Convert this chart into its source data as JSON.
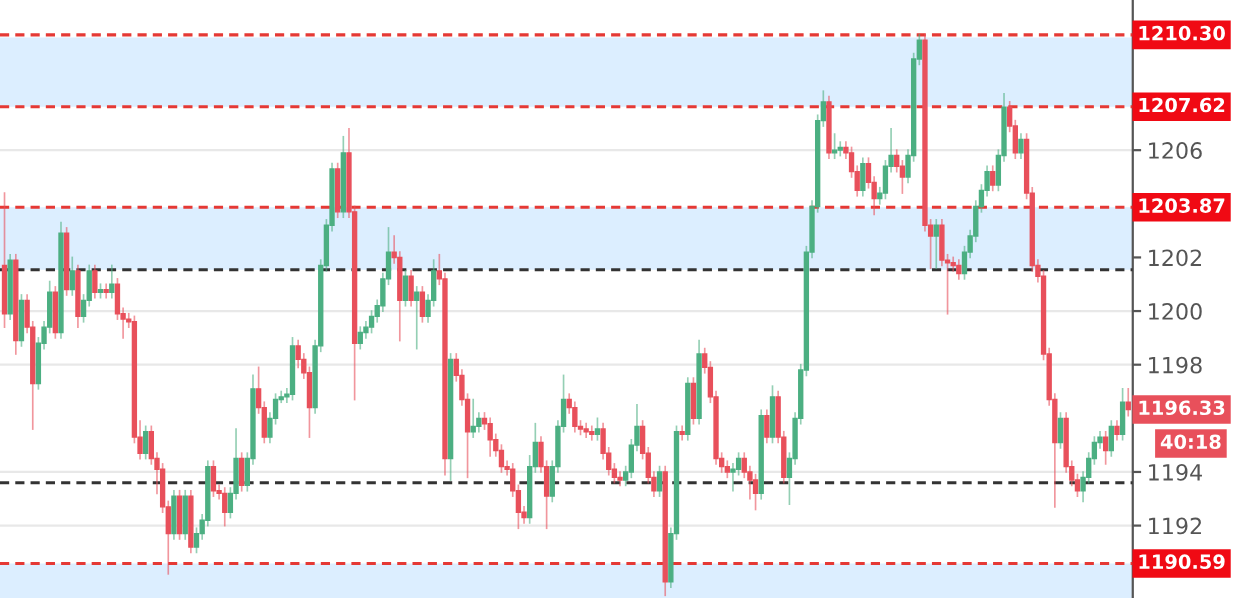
{
  "chart_data": {
    "type": "candlestick",
    "categories": [
      null,
      null,
      null,
      null,
      null,
      null,
      null,
      null,
      null,
      null,
      null,
      null,
      null,
      null,
      null,
      null,
      null,
      null,
      null,
      null,
      null,
      null,
      null,
      null,
      null,
      null,
      null,
      null,
      null,
      null,
      null,
      null,
      null,
      null,
      null,
      null,
      null,
      null,
      null,
      null,
      null,
      null,
      null,
      null,
      null,
      null,
      null,
      null,
      null,
      null,
      null,
      null,
      null,
      null,
      null,
      null,
      null,
      null,
      null,
      null,
      null,
      null,
      null,
      null,
      null,
      null,
      null,
      null,
      null,
      null,
      null,
      null,
      null,
      null,
      null,
      null,
      null,
      null,
      null,
      null,
      null,
      null,
      null,
      null,
      null,
      null,
      null,
      null,
      null,
      null,
      null,
      null,
      null,
      null,
      null,
      null,
      null,
      null,
      null,
      null,
      null,
      null,
      null,
      null,
      null,
      null,
      null,
      null,
      null,
      null,
      null,
      null,
      null,
      null,
      null,
      null,
      null,
      null,
      null,
      null,
      null,
      null,
      null,
      null,
      null,
      null,
      null,
      null,
      null,
      null,
      null,
      null,
      null,
      null,
      null,
      null,
      null,
      null,
      null,
      null,
      null,
      null,
      null,
      null,
      null,
      null,
      null,
      null,
      null,
      null,
      null,
      null,
      null,
      null,
      null,
      null,
      null,
      null,
      null,
      null,
      null,
      null,
      null,
      null,
      null,
      null,
      null,
      null,
      null,
      null,
      null,
      null,
      null,
      null,
      null,
      null,
      null,
      null,
      null,
      null,
      null,
      null,
      null,
      null,
      null,
      null,
      null,
      null,
      null,
      null,
      null,
      null,
      null,
      null,
      null,
      null,
      null,
      null,
      null,
      null
    ],
    "ohlc": [
      [
        1201.7,
        1204.4,
        1199.4,
        1199.9
      ],
      [
        1199.9,
        1202.1,
        1199.7,
        1201.9
      ],
      [
        1201.9,
        1202.1,
        1198.4,
        1198.9
      ],
      [
        1198.9,
        1200.6,
        1198.7,
        1200.4
      ],
      [
        1200.4,
        1200.6,
        1199.2,
        1199.4
      ],
      [
        1199.4,
        1199.6,
        1195.6,
        1197.3
      ],
      [
        1197.3,
        1199.0,
        1197.1,
        1198.8
      ],
      [
        1198.8,
        1199.6,
        1198.6,
        1199.4
      ],
      [
        1199.4,
        1201.1,
        1199.2,
        1200.7
      ],
      [
        1200.7,
        1200.9,
        1199.0,
        1199.2
      ],
      [
        1199.2,
        1203.3,
        1199.0,
        1202.9
      ],
      [
        1202.9,
        1203.1,
        1200.6,
        1200.8
      ],
      [
        1200.8,
        1202.0,
        1200.6,
        1201.5
      ],
      [
        1201.5,
        1201.7,
        1199.4,
        1199.8
      ],
      [
        1199.8,
        1200.6,
        1199.6,
        1200.4
      ],
      [
        1200.4,
        1201.7,
        1200.2,
        1201.5
      ],
      [
        1201.5,
        1201.7,
        1200.5,
        1200.7
      ],
      [
        1200.7,
        1201.0,
        1200.5,
        1200.8
      ],
      [
        1200.8,
        1201.0,
        1200.5,
        1200.7
      ],
      [
        1200.7,
        1201.7,
        1200.5,
        1201.0
      ],
      [
        1201.0,
        1201.2,
        1199.7,
        1199.9
      ],
      [
        1199.9,
        1200.1,
        1199.0,
        1199.7
      ],
      [
        1199.7,
        1199.9,
        1199.4,
        1199.6
      ],
      [
        1199.6,
        1199.8,
        1195.1,
        1195.3
      ],
      [
        1195.3,
        1195.9,
        1194.5,
        1194.7
      ],
      [
        1194.7,
        1195.7,
        1194.5,
        1195.5
      ],
      [
        1195.5,
        1195.7,
        1194.3,
        1194.5
      ],
      [
        1194.5,
        1194.7,
        1193.2,
        1194.1
      ],
      [
        1194.1,
        1194.3,
        1192.5,
        1192.7
      ],
      [
        1192.7,
        1192.9,
        1190.2,
        1191.7
      ],
      [
        1191.7,
        1193.3,
        1191.5,
        1193.1
      ],
      [
        1193.1,
        1193.3,
        1191.5,
        1191.7
      ],
      [
        1191.7,
        1193.3,
        1191.5,
        1193.1
      ],
      [
        1193.1,
        1193.3,
        1191.0,
        1191.2
      ],
      [
        1191.2,
        1191.9,
        1191.0,
        1191.7
      ],
      [
        1191.7,
        1192.4,
        1191.5,
        1192.2
      ],
      [
        1192.2,
        1194.4,
        1192.0,
        1194.2
      ],
      [
        1194.2,
        1194.4,
        1193.1,
        1193.3
      ],
      [
        1193.3,
        1193.5,
        1193.0,
        1193.2
      ],
      [
        1193.2,
        1193.4,
        1192.0,
        1192.5
      ],
      [
        1192.5,
        1193.4,
        1192.3,
        1193.2
      ],
      [
        1193.2,
        1195.6,
        1193.0,
        1194.5
      ],
      [
        1194.5,
        1194.7,
        1193.3,
        1193.5
      ],
      [
        1193.5,
        1194.7,
        1193.3,
        1194.5
      ],
      [
        1194.5,
        1197.6,
        1194.3,
        1197.1
      ],
      [
        1197.1,
        1197.9,
        1196.2,
        1196.4
      ],
      [
        1196.4,
        1196.6,
        1195.1,
        1195.3
      ],
      [
        1195.3,
        1196.2,
        1195.1,
        1196.0
      ],
      [
        1196.0,
        1196.9,
        1195.8,
        1196.7
      ],
      [
        1196.7,
        1197.0,
        1196.6,
        1196.8
      ],
      [
        1196.8,
        1197.1,
        1196.6,
        1196.9
      ],
      [
        1196.9,
        1199.0,
        1196.7,
        1198.7
      ],
      [
        1198.7,
        1198.9,
        1197.9,
        1198.2
      ],
      [
        1198.2,
        1198.4,
        1197.5,
        1197.7
      ],
      [
        1197.7,
        1197.9,
        1195.3,
        1196.4
      ],
      [
        1196.4,
        1198.9,
        1196.2,
        1198.7
      ],
      [
        1198.7,
        1201.9,
        1198.5,
        1201.7
      ],
      [
        1201.7,
        1203.4,
        1201.5,
        1203.2
      ],
      [
        1203.2,
        1205.5,
        1203.0,
        1205.3
      ],
      [
        1205.3,
        1205.5,
        1203.5,
        1203.7
      ],
      [
        1203.7,
        1206.5,
        1203.5,
        1205.9
      ],
      [
        1205.9,
        1206.8,
        1203.5,
        1203.7
      ],
      [
        1203.7,
        1203.9,
        1196.7,
        1198.8
      ],
      [
        1198.8,
        1199.4,
        1198.6,
        1199.2
      ],
      [
        1199.2,
        1199.6,
        1199.0,
        1199.4
      ],
      [
        1199.4,
        1200.0,
        1199.2,
        1199.8
      ],
      [
        1199.8,
        1200.4,
        1199.6,
        1200.2
      ],
      [
        1200.2,
        1201.4,
        1200.0,
        1201.2
      ],
      [
        1201.2,
        1203.1,
        1201.0,
        1202.2
      ],
      [
        1202.2,
        1202.8,
        1201.8,
        1202.0
      ],
      [
        1202.0,
        1202.2,
        1198.9,
        1200.4
      ],
      [
        1200.4,
        1201.5,
        1200.2,
        1201.3
      ],
      [
        1201.3,
        1201.5,
        1200.2,
        1200.4
      ],
      [
        1200.4,
        1200.9,
        1198.6,
        1200.7
      ],
      [
        1200.7,
        1200.9,
        1199.6,
        1199.8
      ],
      [
        1199.8,
        1200.6,
        1199.6,
        1200.4
      ],
      [
        1200.4,
        1201.9,
        1200.2,
        1201.5
      ],
      [
        1201.5,
        1202.1,
        1201.0,
        1201.2
      ],
      [
        1201.2,
        1201.4,
        1193.9,
        1194.5
      ],
      [
        1194.5,
        1198.4,
        1193.7,
        1198.2
      ],
      [
        1198.2,
        1198.4,
        1197.4,
        1197.6
      ],
      [
        1197.6,
        1197.8,
        1196.5,
        1196.7
      ],
      [
        1196.7,
        1196.9,
        1193.8,
        1195.5
      ],
      [
        1195.5,
        1196.7,
        1195.3,
        1195.7
      ],
      [
        1195.7,
        1196.2,
        1195.5,
        1196.0
      ],
      [
        1196.0,
        1196.2,
        1195.6,
        1195.8
      ],
      [
        1195.8,
        1196.0,
        1194.6,
        1195.2
      ],
      [
        1195.2,
        1195.4,
        1194.6,
        1194.8
      ],
      [
        1194.8,
        1195.0,
        1194.0,
        1194.2
      ],
      [
        1194.2,
        1194.4,
        1193.9,
        1194.1
      ],
      [
        1194.1,
        1194.3,
        1193.1,
        1193.3
      ],
      [
        1193.3,
        1193.5,
        1191.9,
        1192.5
      ],
      [
        1192.5,
        1192.7,
        1192.1,
        1192.3
      ],
      [
        1192.3,
        1194.6,
        1192.1,
        1194.2
      ],
      [
        1194.2,
        1195.8,
        1194.0,
        1195.1
      ],
      [
        1195.1,
        1195.3,
        1194.0,
        1194.2
      ],
      [
        1194.2,
        1194.4,
        1191.9,
        1193.1
      ],
      [
        1193.1,
        1194.4,
        1192.9,
        1194.2
      ],
      [
        1194.2,
        1195.9,
        1194.0,
        1195.7
      ],
      [
        1195.7,
        1197.6,
        1195.5,
        1196.7
      ],
      [
        1196.7,
        1196.9,
        1196.2,
        1196.4
      ],
      [
        1196.4,
        1196.6,
        1195.5,
        1195.7
      ],
      [
        1195.7,
        1195.9,
        1195.4,
        1195.6
      ],
      [
        1195.6,
        1195.8,
        1195.3,
        1195.5
      ],
      [
        1195.5,
        1195.7,
        1195.2,
        1195.4
      ],
      [
        1195.4,
        1196.0,
        1195.2,
        1195.6
      ],
      [
        1195.6,
        1195.8,
        1194.5,
        1194.7
      ],
      [
        1194.7,
        1194.9,
        1193.9,
        1194.1
      ],
      [
        1194.1,
        1194.3,
        1193.6,
        1193.8
      ],
      [
        1193.8,
        1194.0,
        1193.5,
        1193.7
      ],
      [
        1193.7,
        1194.2,
        1193.5,
        1194.0
      ],
      [
        1194.0,
        1195.2,
        1193.8,
        1195.0
      ],
      [
        1195.0,
        1196.5,
        1194.8,
        1195.7
      ],
      [
        1195.7,
        1195.9,
        1194.5,
        1194.7
      ],
      [
        1194.7,
        1194.9,
        1193.6,
        1193.8
      ],
      [
        1193.8,
        1194.0,
        1193.1,
        1193.3
      ],
      [
        1193.3,
        1194.2,
        1193.1,
        1194.0
      ],
      [
        1194.0,
        1194.2,
        1189.4,
        1189.9
      ],
      [
        1189.9,
        1191.9,
        1189.7,
        1191.7
      ],
      [
        1191.7,
        1195.7,
        1191.5,
        1195.5
      ],
      [
        1195.5,
        1195.7,
        1195.2,
        1195.4
      ],
      [
        1195.4,
        1197.5,
        1195.2,
        1197.3
      ],
      [
        1197.3,
        1197.5,
        1195.8,
        1196.0
      ],
      [
        1196.0,
        1198.9,
        1195.8,
        1198.4
      ],
      [
        1198.4,
        1198.6,
        1197.7,
        1197.9
      ],
      [
        1197.9,
        1198.1,
        1196.6,
        1196.8
      ],
      [
        1196.8,
        1197.0,
        1194.3,
        1194.5
      ],
      [
        1194.5,
        1194.7,
        1194.0,
        1194.2
      ],
      [
        1194.2,
        1194.4,
        1193.8,
        1194.0
      ],
      [
        1194.0,
        1194.3,
        1193.3,
        1194.1
      ],
      [
        1194.1,
        1194.7,
        1193.9,
        1194.5
      ],
      [
        1194.5,
        1194.7,
        1193.8,
        1194.0
      ],
      [
        1194.0,
        1194.2,
        1193.0,
        1193.7
      ],
      [
        1193.7,
        1193.9,
        1192.6,
        1193.2
      ],
      [
        1193.2,
        1196.3,
        1193.0,
        1196.1
      ],
      [
        1196.1,
        1196.3,
        1195.1,
        1195.3
      ],
      [
        1195.3,
        1197.2,
        1195.1,
        1196.8
      ],
      [
        1196.8,
        1197.0,
        1195.1,
        1195.3
      ],
      [
        1195.3,
        1195.5,
        1193.6,
        1193.8
      ],
      [
        1193.8,
        1194.7,
        1192.8,
        1194.5
      ],
      [
        1194.5,
        1196.2,
        1194.3,
        1196.0
      ],
      [
        1196.0,
        1198.0,
        1195.8,
        1197.8
      ],
      [
        1197.8,
        1202.4,
        1197.6,
        1202.2
      ],
      [
        1202.2,
        1204.1,
        1202.0,
        1203.9
      ],
      [
        1203.9,
        1207.3,
        1203.7,
        1207.1
      ],
      [
        1207.1,
        1208.2,
        1206.9,
        1207.8
      ],
      [
        1207.8,
        1208.0,
        1205.7,
        1205.9
      ],
      [
        1205.9,
        1206.6,
        1205.7,
        1206.0
      ],
      [
        1206.0,
        1206.3,
        1205.8,
        1206.1
      ],
      [
        1206.1,
        1206.3,
        1205.7,
        1205.9
      ],
      [
        1205.9,
        1206.1,
        1205.0,
        1205.2
      ],
      [
        1205.2,
        1205.4,
        1204.3,
        1204.5
      ],
      [
        1204.5,
        1205.7,
        1204.3,
        1205.5
      ],
      [
        1205.5,
        1205.7,
        1204.6,
        1204.8
      ],
      [
        1204.8,
        1205.0,
        1203.6,
        1204.2
      ],
      [
        1204.2,
        1204.6,
        1204.0,
        1204.4
      ],
      [
        1204.4,
        1205.6,
        1204.2,
        1205.4
      ],
      [
        1205.4,
        1206.8,
        1205.2,
        1205.8
      ],
      [
        1205.8,
        1206.0,
        1205.2,
        1205.4
      ],
      [
        1205.4,
        1205.6,
        1204.4,
        1205.0
      ],
      [
        1205.0,
        1206.0,
        1204.8,
        1205.8
      ],
      [
        1205.8,
        1209.6,
        1205.6,
        1209.4
      ],
      [
        1209.4,
        1210.3,
        1209.2,
        1210.1
      ],
      [
        1210.1,
        1210.3,
        1203.0,
        1203.2
      ],
      [
        1203.2,
        1203.4,
        1201.6,
        1202.8
      ],
      [
        1202.8,
        1203.4,
        1201.6,
        1203.2
      ],
      [
        1203.2,
        1203.4,
        1201.7,
        1201.9
      ],
      [
        1201.9,
        1202.1,
        1199.9,
        1201.8
      ],
      [
        1201.8,
        1202.0,
        1201.5,
        1201.7
      ],
      [
        1201.7,
        1201.9,
        1201.2,
        1201.4
      ],
      [
        1201.4,
        1202.4,
        1201.2,
        1202.2
      ],
      [
        1202.2,
        1203.0,
        1202.0,
        1202.8
      ],
      [
        1202.8,
        1204.1,
        1202.6,
        1203.9
      ],
      [
        1203.9,
        1204.7,
        1203.7,
        1204.5
      ],
      [
        1204.5,
        1205.4,
        1204.3,
        1205.2
      ],
      [
        1205.2,
        1205.4,
        1204.5,
        1204.7
      ],
      [
        1204.7,
        1206.0,
        1204.5,
        1205.8
      ],
      [
        1205.8,
        1208.1,
        1205.6,
        1207.6
      ],
      [
        1207.6,
        1207.8,
        1206.7,
        1206.9
      ],
      [
        1206.9,
        1207.1,
        1205.7,
        1205.9
      ],
      [
        1205.9,
        1206.6,
        1205.7,
        1206.4
      ],
      [
        1206.4,
        1206.6,
        1204.2,
        1204.4
      ],
      [
        1204.4,
        1204.6,
        1201.5,
        1201.7
      ],
      [
        1201.7,
        1201.9,
        1201.1,
        1201.3
      ],
      [
        1201.3,
        1201.5,
        1198.2,
        1198.4
      ],
      [
        1198.4,
        1198.6,
        1196.5,
        1196.7
      ],
      [
        1196.7,
        1196.9,
        1192.7,
        1195.1
      ],
      [
        1195.1,
        1196.2,
        1194.9,
        1196.0
      ],
      [
        1196.0,
        1196.2,
        1194.0,
        1194.2
      ],
      [
        1194.2,
        1194.4,
        1193.5,
        1193.7
      ],
      [
        1193.7,
        1193.9,
        1193.1,
        1193.3
      ],
      [
        1193.3,
        1194.0,
        1192.9,
        1193.8
      ],
      [
        1193.8,
        1194.7,
        1193.6,
        1194.5
      ],
      [
        1194.5,
        1195.3,
        1194.3,
        1195.1
      ],
      [
        1195.1,
        1195.5,
        1194.9,
        1195.3
      ],
      [
        1195.3,
        1195.5,
        1194.3,
        1194.8
      ],
      [
        1194.8,
        1195.9,
        1194.6,
        1195.7
      ],
      [
        1195.7,
        1195.9,
        1195.2,
        1195.4
      ],
      [
        1195.4,
        1197.1,
        1195.2,
        1196.6
      ],
      [
        1196.6,
        1197.1,
        1196.1,
        1196.33
      ]
    ],
    "ylim": [
      1189.3,
      1211.6
    ],
    "yticks": [
      1192,
      1194,
      1198,
      1200,
      1202,
      1206
    ],
    "grid": "y",
    "bands": [
      {
        "axis": "y",
        "from": 1207.62,
        "to": 1210.2,
        "color": "#dceeff"
      },
      {
        "axis": "y",
        "from": 1201.54,
        "to": 1203.87,
        "color": "#dceeff"
      },
      {
        "axis": "y",
        "from": 1189.3,
        "to": 1190.59,
        "color": "#dceeff"
      }
    ],
    "ref_lines": [
      {
        "axis": "y",
        "value": 1210.3,
        "label": "1210.30",
        "color": "#e53935",
        "line_style": "dashed"
      },
      {
        "axis": "y",
        "value": 1207.62,
        "label": "1207.62",
        "color": "#e53935",
        "line_style": "dashed"
      },
      {
        "axis": "y",
        "value": 1203.87,
        "label": "1203.87",
        "color": "#e53935",
        "line_style": "dashed"
      },
      {
        "axis": "y",
        "value": 1201.54,
        "label": null,
        "color": "#333333",
        "line_style": "dashed"
      },
      {
        "axis": "y",
        "value": 1193.6,
        "label": null,
        "color": "#333333",
        "line_style": "dashed"
      },
      {
        "axis": "y",
        "value": 1190.59,
        "label": "1190.59",
        "color": "#e53935",
        "line_style": "dashed"
      }
    ],
    "annotations": [
      "1196.33",
      "40:18"
    ]
  }
}
